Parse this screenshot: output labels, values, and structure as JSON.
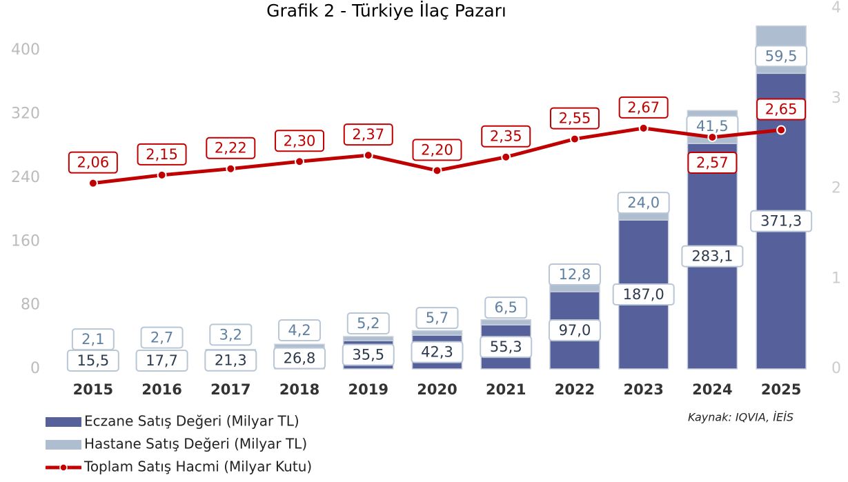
{
  "chart_data": {
    "type": "bar_line",
    "title": "Grafik 2 - Türkiye İlaç Pazarı",
    "source": "Kaynak: IQVIA, İEİS",
    "categories": [
      "2015",
      "2016",
      "2017",
      "2018",
      "2019",
      "2020",
      "2021",
      "2022",
      "2023",
      "2024",
      "2025"
    ],
    "series": [
      {
        "name": "Eczane Satış Değeri (Milyar TL)",
        "color": "#56609a",
        "type": "bar",
        "values": [
          15.5,
          17.7,
          21.3,
          26.8,
          35.5,
          42.3,
          55.3,
          97.0,
          187.0,
          283.1,
          371.3
        ],
        "value_labels": [
          "15,5",
          "17,7",
          "21,3",
          "26,8",
          "35,5",
          "42,3",
          "55,3",
          "97,0",
          "187,0",
          "283,1",
          "371,3"
        ]
      },
      {
        "name": "Hastane Satış Değeri (Milyar TL)",
        "color": "#afbdd1",
        "type": "bar",
        "values": [
          2.1,
          2.7,
          3.2,
          4.2,
          5.2,
          5.7,
          6.5,
          12.8,
          24.0,
          41.5,
          59.5
        ],
        "value_labels": [
          "2,1",
          "2,7",
          "3,2",
          "4,2",
          "5,2",
          "5,7",
          "6,5",
          "12,8",
          "24,0",
          "41,5",
          "59,5"
        ]
      },
      {
        "name": "Toplam Satış Hacmi (Milyar Kutu)",
        "color": "#c00000",
        "type": "line",
        "axis": "y2",
        "values": [
          2.06,
          2.15,
          2.22,
          2.3,
          2.37,
          2.2,
          2.35,
          2.55,
          2.67,
          2.57,
          2.65
        ],
        "value_labels": [
          "2,06",
          "2,15",
          "2,22",
          "2,30",
          "2,37",
          "2,20",
          "2,35",
          "2,55",
          "2,67",
          "2,57",
          "2,65"
        ]
      }
    ],
    "ylim": [
      0,
      453
    ],
    "yticks": [
      0,
      80,
      160,
      240,
      320,
      400
    ],
    "y2lim": [
      0,
      4
    ],
    "y2ticks": [
      0,
      1,
      2,
      3,
      4
    ],
    "stacked": true,
    "grid": false
  }
}
